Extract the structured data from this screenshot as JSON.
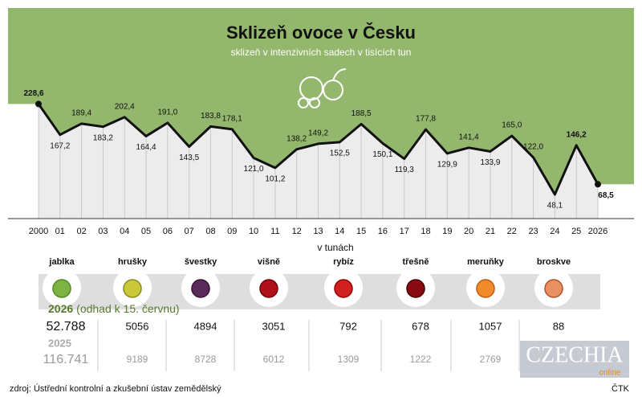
{
  "chart_data": {
    "type": "line",
    "title": "Sklizeň ovoce v Česku",
    "subtitle": "sklizeň v intenzivních sadech v tisících tun",
    "categories": [
      "2000",
      "01",
      "02",
      "03",
      "04",
      "05",
      "06",
      "07",
      "08",
      "09",
      "10",
      "11",
      "12",
      "13",
      "14",
      "15",
      "16",
      "17",
      "18",
      "19",
      "20",
      "21",
      "22",
      "23",
      "24",
      "25",
      "2026"
    ],
    "values": [
      228.6,
      167.2,
      189.4,
      183.2,
      202.4,
      164.4,
      191.0,
      143.5,
      183.8,
      178.1,
      121.0,
      101.2,
      138.2,
      149.2,
      152.5,
      188.5,
      150.1,
      119.3,
      177.8,
      129.9,
      141.4,
      133.9,
      165.0,
      122.0,
      48.1,
      146.2,
      68.5
    ],
    "value_labels": [
      "228,6",
      "167,2",
      "189,4",
      "183,2",
      "202,4",
      "164,4",
      "191,0",
      "143,5",
      "183,8",
      "178,1",
      "121,0",
      "101,2",
      "138,2",
      "149,2",
      "152,5",
      "188,5",
      "150,1",
      "119,3",
      "177,8",
      "129,9",
      "141,4",
      "133,9",
      "165,0",
      "122,0",
      "48,1",
      "146,2",
      "68,5"
    ],
    "color": "#111111",
    "area_color": "#93b76c",
    "ylim": [
      0,
      420
    ]
  },
  "table": {
    "heading": "v tunách",
    "fruits": [
      "jablka",
      "hrušky",
      "švestky",
      "višně",
      "rybíz",
      "třešně",
      "meruňky",
      "broskve"
    ],
    "current": {
      "year": "2026",
      "note": "(odhad k 15. červnu)",
      "values": [
        "52.788",
        "5056",
        "4894",
        "3051",
        "792",
        "678",
        "1057",
        "88"
      ]
    },
    "previous": {
      "year": "2025",
      "values": [
        "116.741",
        "9189",
        "8728",
        "6012",
        "1309",
        "1222",
        "2769",
        null
      ]
    }
  },
  "source": "zdroj: Ústřední kontrolní a zkušební ústav zemědělský",
  "agency": "ČTK",
  "logo": {
    "name": "CZECHIA",
    "tag": "online"
  }
}
